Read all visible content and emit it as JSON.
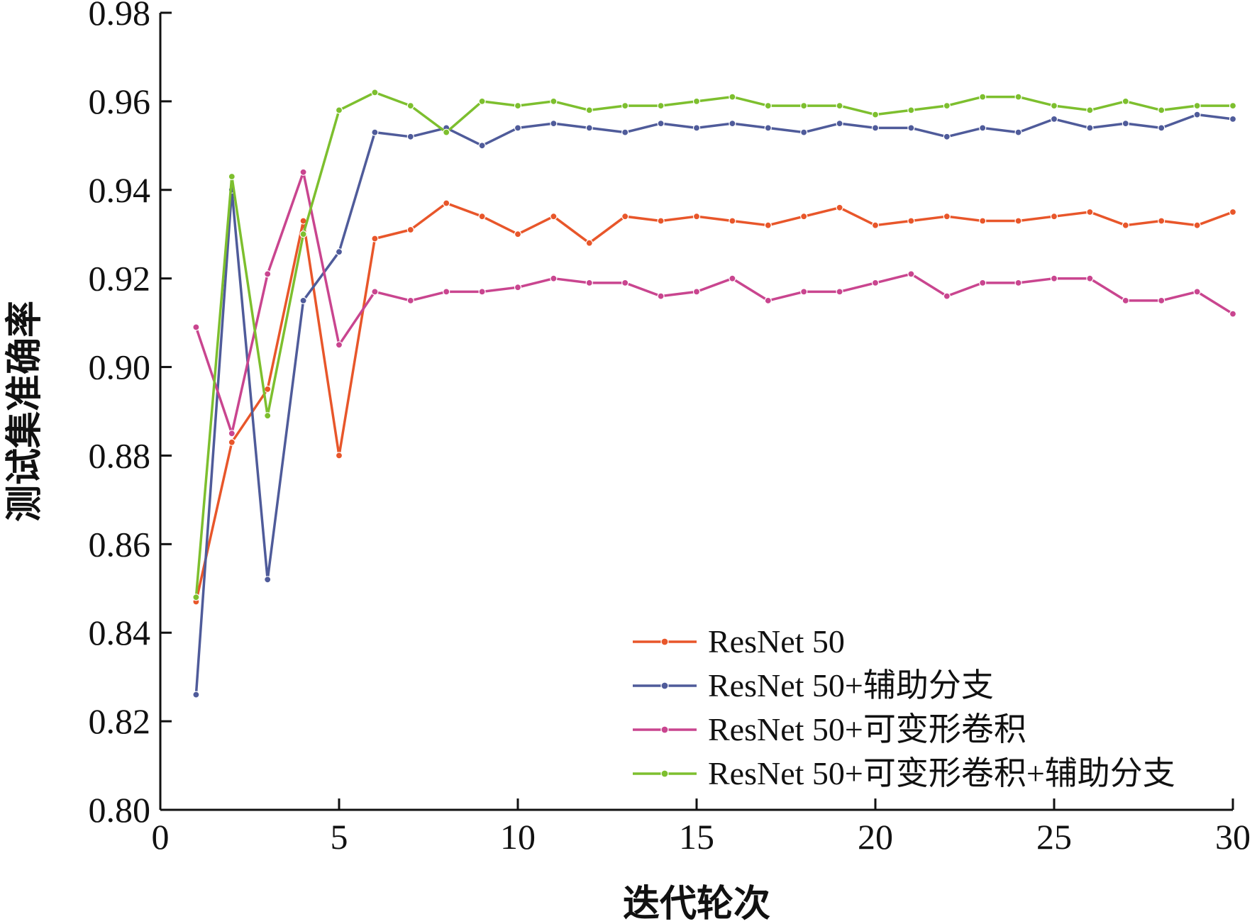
{
  "chart_data": {
    "type": "line",
    "xlabel": "迭代轮次",
    "ylabel": "测试集准确率",
    "xlim": [
      0,
      30
    ],
    "ylim": [
      0.8,
      0.98
    ],
    "xticks": [
      0,
      5,
      10,
      15,
      20,
      25,
      30
    ],
    "yticks": [
      0.8,
      0.82,
      0.84,
      0.86,
      0.88,
      0.9,
      0.92,
      0.94,
      0.96,
      0.98
    ],
    "ytick_labels": [
      "0.80",
      "0.82",
      "0.84",
      "0.86",
      "0.88",
      "0.90",
      "0.92",
      "0.94",
      "0.96",
      "0.98"
    ],
    "grid": false,
    "legend_position": "bottom-right",
    "x": [
      1,
      2,
      3,
      4,
      5,
      6,
      7,
      8,
      9,
      10,
      11,
      12,
      13,
      14,
      15,
      16,
      17,
      18,
      19,
      20,
      21,
      22,
      23,
      24,
      25,
      26,
      27,
      28,
      29,
      30
    ],
    "series": [
      {
        "name": "ResNet 50",
        "color": "#e8562a",
        "values": [
          0.847,
          0.883,
          0.895,
          0.933,
          0.88,
          0.929,
          0.931,
          0.937,
          0.934,
          0.93,
          0.934,
          0.928,
          0.934,
          0.933,
          0.934,
          0.933,
          0.932,
          0.934,
          0.936,
          0.932,
          0.933,
          0.934,
          0.933,
          0.933,
          0.934,
          0.935,
          0.932,
          0.933,
          0.932,
          0.935
        ]
      },
      {
        "name": "ResNet 50+辅助分支",
        "color": "#4f5b9a",
        "values": [
          0.826,
          0.94,
          0.852,
          0.915,
          0.926,
          0.953,
          0.952,
          0.954,
          0.95,
          0.954,
          0.955,
          0.954,
          0.953,
          0.955,
          0.954,
          0.955,
          0.954,
          0.953,
          0.955,
          0.954,
          0.954,
          0.952,
          0.954,
          0.953,
          0.956,
          0.954,
          0.955,
          0.954,
          0.957,
          0.956
        ]
      },
      {
        "name": "ResNet 50+可变形卷积",
        "color": "#c9458f",
        "values": [
          0.909,
          0.885,
          0.921,
          0.944,
          0.905,
          0.917,
          0.915,
          0.917,
          0.917,
          0.918,
          0.92,
          0.919,
          0.919,
          0.916,
          0.917,
          0.92,
          0.915,
          0.917,
          0.917,
          0.919,
          0.921,
          0.916,
          0.919,
          0.919,
          0.92,
          0.92,
          0.915,
          0.915,
          0.917,
          0.912
        ]
      },
      {
        "name": "ResNet 50+可变形卷积+辅助分支",
        "color": "#7dbf2e",
        "values": [
          0.848,
          0.943,
          0.889,
          0.93,
          0.958,
          0.962,
          0.959,
          0.953,
          0.96,
          0.959,
          0.96,
          0.958,
          0.959,
          0.959,
          0.96,
          0.961,
          0.959,
          0.959,
          0.959,
          0.957,
          0.958,
          0.959,
          0.961,
          0.961,
          0.959,
          0.958,
          0.96,
          0.958,
          0.959,
          0.959
        ]
      }
    ]
  }
}
